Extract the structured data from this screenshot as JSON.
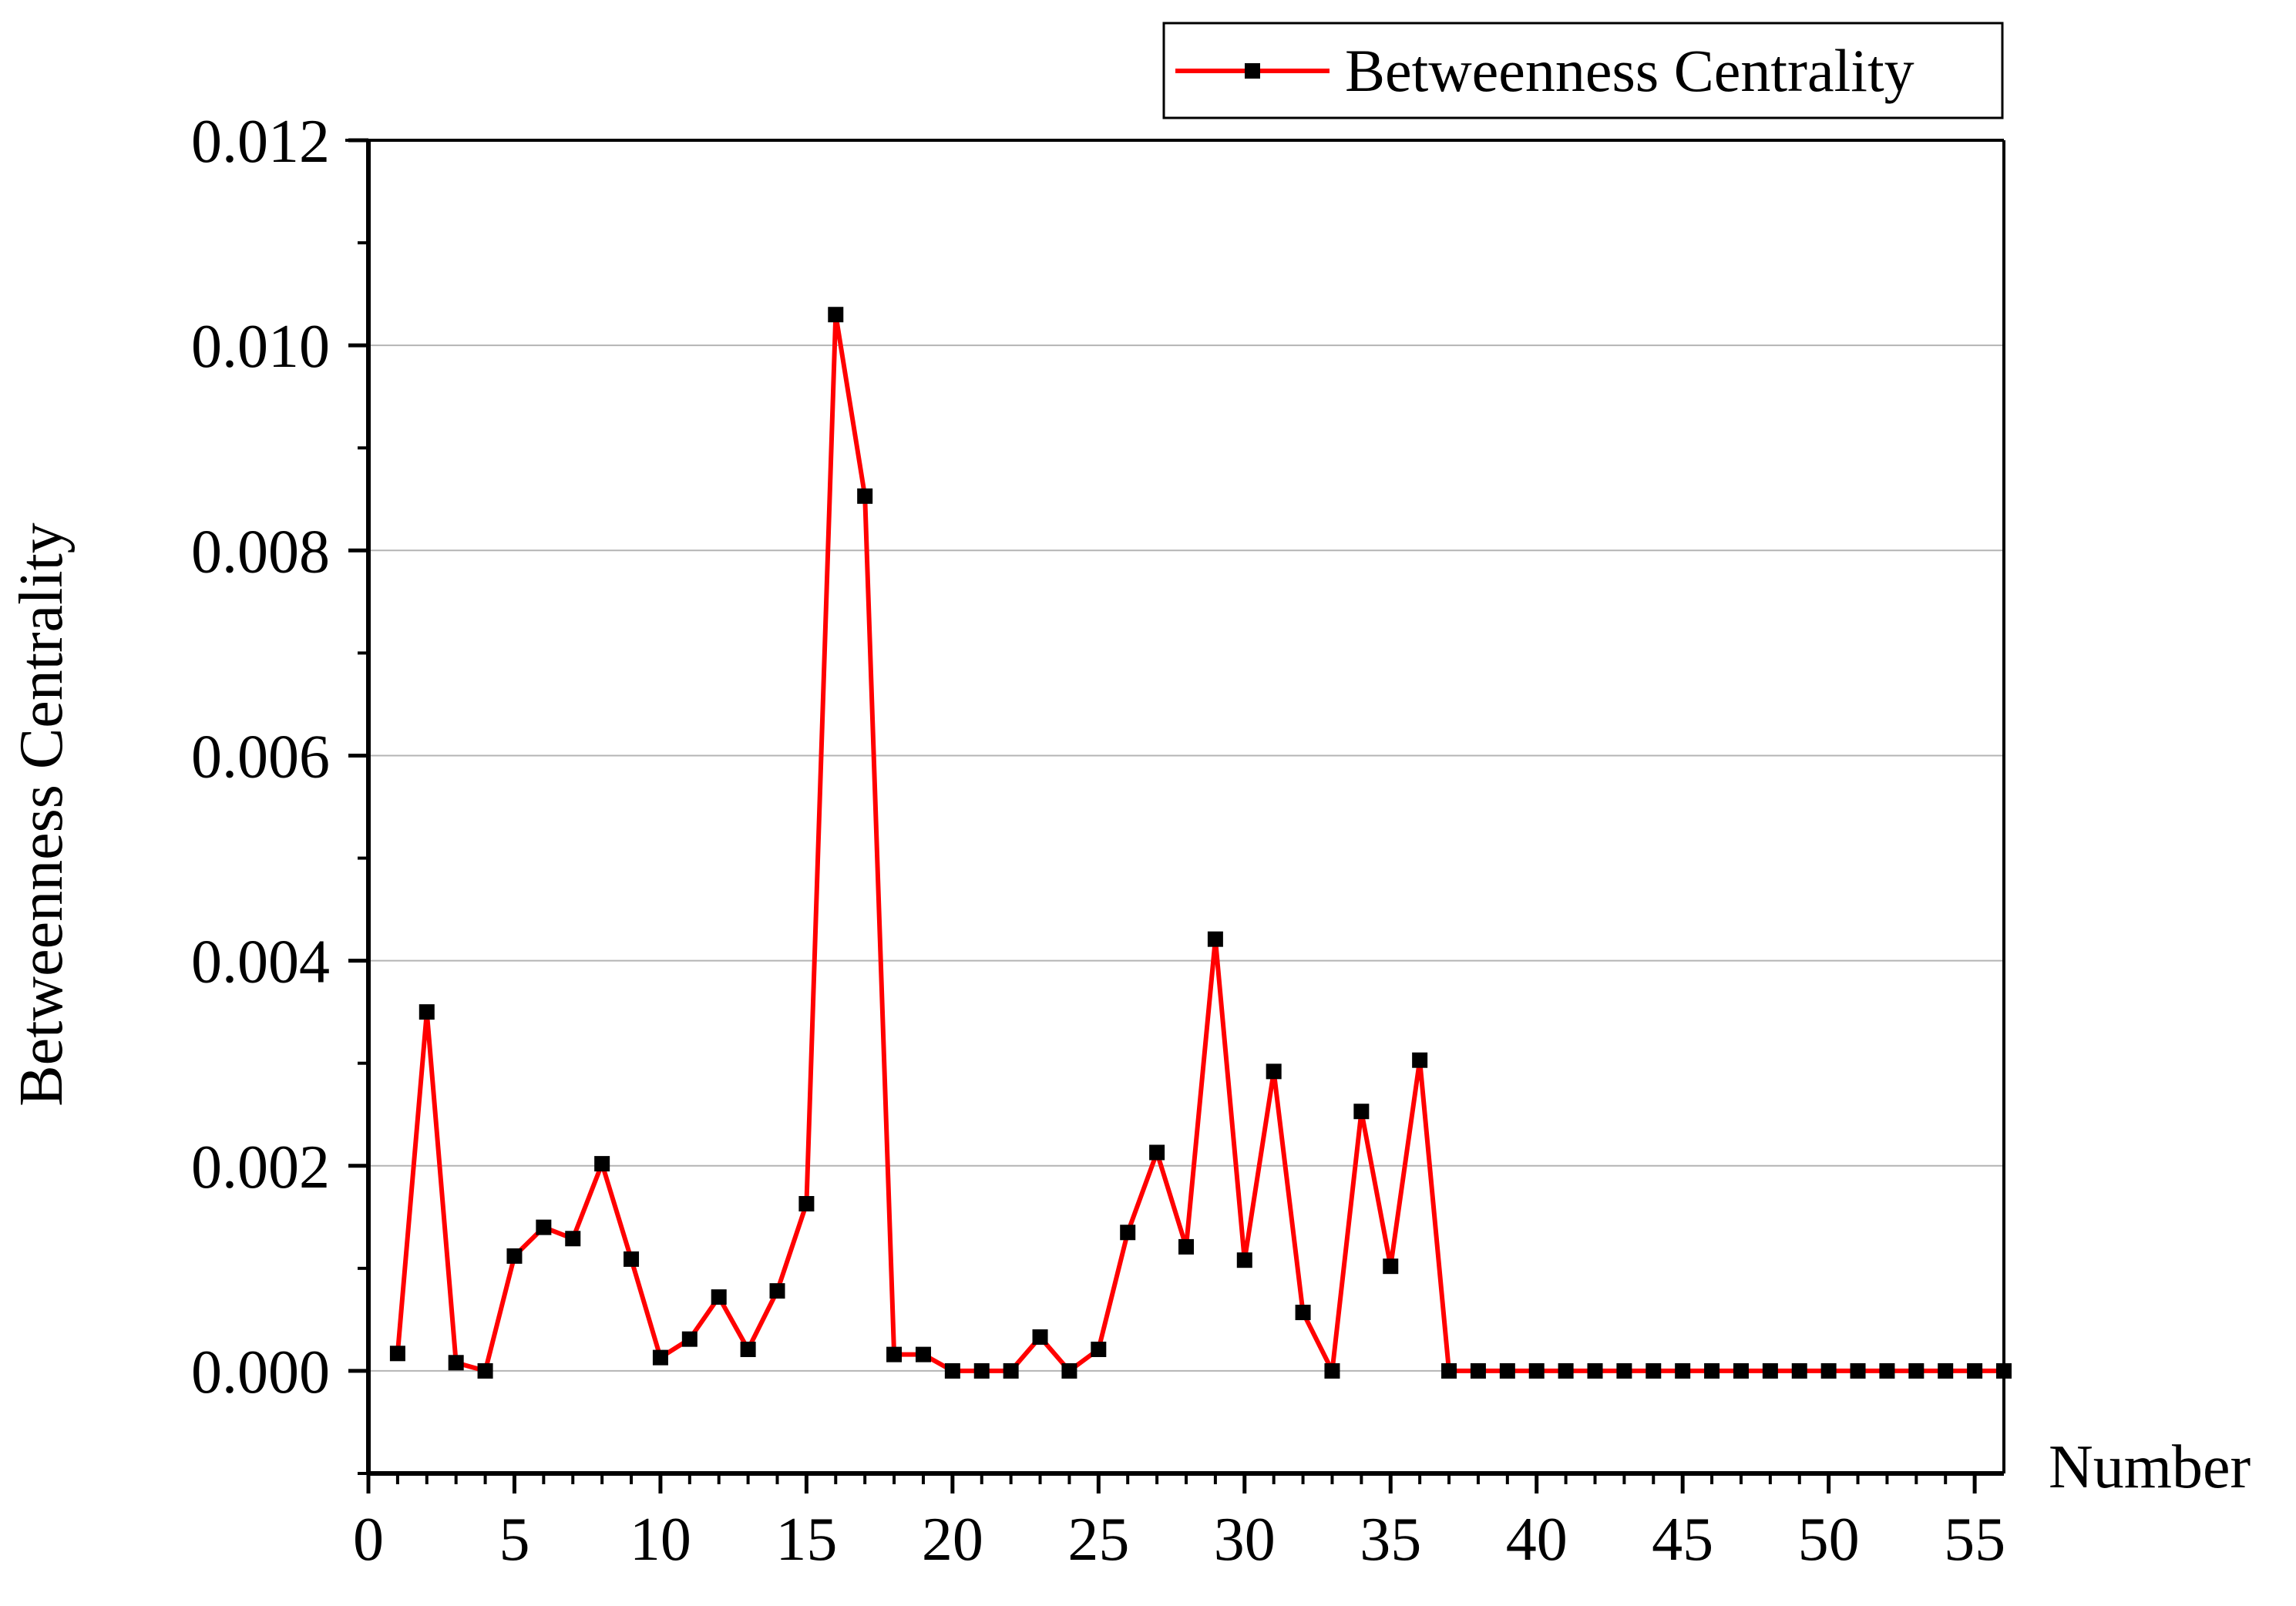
{
  "chart_data": {
    "type": "line",
    "title": "",
    "xlabel": "Number",
    "ylabel": "Betweenness Centrality",
    "xlim": [
      0,
      56
    ],
    "ylim": [
      -0.001,
      0.012
    ],
    "xticks": [
      0,
      5,
      10,
      15,
      20,
      25,
      30,
      35,
      40,
      45,
      50,
      55
    ],
    "xtick_labels": [
      "0",
      "5",
      "10",
      "15",
      "20",
      "25",
      "30",
      "35",
      "40",
      "45",
      "50",
      "55"
    ],
    "yticks": [
      0.0,
      0.002,
      0.004,
      0.006,
      0.008,
      0.01,
      0.012
    ],
    "ytick_labels": [
      "0.000",
      "0.002",
      "0.004",
      "0.006",
      "0.008",
      "0.010",
      "0.012"
    ],
    "grid": "horizontal",
    "legend_position": "top-right",
    "colors": {
      "line": "#ff0000",
      "marker": "#000000",
      "grid": "#b4b4b4"
    },
    "series": [
      {
        "name": "Betweenness Centrality",
        "x": [
          1,
          2,
          3,
          4,
          5,
          6,
          7,
          8,
          9,
          10,
          11,
          12,
          13,
          14,
          15,
          16,
          17,
          18,
          19,
          20,
          21,
          22,
          23,
          24,
          25,
          26,
          27,
          28,
          29,
          30,
          31,
          32,
          33,
          34,
          35,
          36,
          37,
          38,
          39,
          40,
          41,
          42,
          43,
          44,
          45,
          46,
          47,
          48,
          49,
          50,
          51,
          52,
          53,
          54,
          55,
          56
        ],
        "y": [
          0.00017,
          0.0035,
          8e-05,
          0.0,
          0.00112,
          0.0014,
          0.00129,
          0.00202,
          0.00109,
          0.00013,
          0.00031,
          0.00072,
          0.00021,
          0.00078,
          0.00163,
          0.0103,
          0.00853,
          0.00016,
          0.00016,
          0.0,
          0.0,
          0.0,
          0.00033,
          0.0,
          0.00021,
          0.00135,
          0.00213,
          0.00121,
          0.00421,
          0.00108,
          0.00292,
          0.00057,
          0.0,
          0.00253,
          0.00102,
          0.00303,
          0.0,
          0.0,
          0.0,
          0.0,
          0.0,
          0.0,
          0.0,
          0.0,
          0.0,
          0.0,
          0.0,
          0.0,
          0.0,
          0.0,
          0.0,
          0.0,
          0.0,
          0.0,
          0.0,
          0.0
        ]
      }
    ]
  }
}
